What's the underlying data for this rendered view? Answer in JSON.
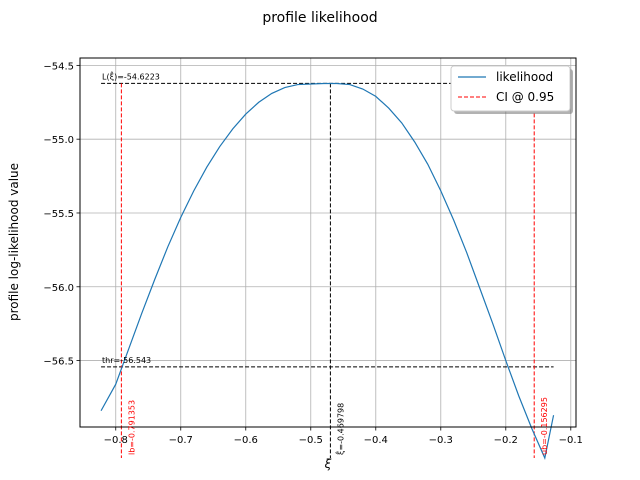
{
  "chart_data": {
    "type": "line",
    "title": "profile likelihood",
    "xlabel": "ξ",
    "ylabel": "profile log-likelihood value",
    "xlim": [
      -0.855,
      -0.092
    ],
    "ylim": [
      -56.95,
      -54.45
    ],
    "grid": true,
    "legend_position": "top-right",
    "x_ticks": [
      -0.8,
      -0.7,
      -0.6,
      -0.5,
      -0.4,
      -0.3,
      -0.2,
      -0.1
    ],
    "x_tick_labels": [
      "−0.8",
      "−0.7",
      "−0.6",
      "−0.5",
      "−0.4",
      "−0.3",
      "−0.2",
      "−0.1"
    ],
    "y_ticks": [
      -54.5,
      -55.0,
      -55.5,
      -56.0,
      -56.5
    ],
    "y_tick_labels": [
      "−54.5",
      "−55.0",
      "−55.5",
      "−56.0",
      "−56.5"
    ],
    "series": [
      {
        "name": "likelihood",
        "color": "#1f77b4",
        "x": [
          -0.8226,
          -0.8,
          -0.78,
          -0.76,
          -0.74,
          -0.72,
          -0.7,
          -0.68,
          -0.66,
          -0.64,
          -0.62,
          -0.6,
          -0.58,
          -0.56,
          -0.54,
          -0.52,
          -0.5,
          -0.48,
          -0.469798,
          -0.46,
          -0.44,
          -0.42,
          -0.4,
          -0.38,
          -0.36,
          -0.34,
          -0.32,
          -0.3,
          -0.28,
          -0.26,
          -0.24,
          -0.22,
          -0.2,
          -0.18,
          -0.16,
          -0.14,
          -0.1265
        ],
        "y": [
          -56.84,
          -56.66,
          -56.42,
          -56.18,
          -55.95,
          -55.73,
          -55.53,
          -55.35,
          -55.19,
          -55.05,
          -54.93,
          -54.83,
          -54.75,
          -54.69,
          -54.65,
          -54.63,
          -54.626,
          -54.623,
          -54.6223,
          -54.623,
          -54.63,
          -54.66,
          -54.71,
          -54.79,
          -54.89,
          -55.02,
          -55.17,
          -55.35,
          -55.55,
          -55.77,
          -56.01,
          -56.25,
          -56.5,
          -56.74,
          -56.96,
          -57.16,
          -56.87
        ]
      }
    ],
    "ci": {
      "name": "CI @ 0.95",
      "color": "#ff0000",
      "lb": -0.791353,
      "ub": -0.156295,
      "lb_label": "lb=-0.791353",
      "ub_label": "ub=-0.156295"
    },
    "optimum": {
      "xi": -0.469798,
      "value": -54.6223,
      "xi_label": "ξ̂=-0.469798",
      "value_label": "L(ξ̂)=-54.6223"
    },
    "threshold": {
      "value": -56.543,
      "label": "thr=-56.543"
    }
  }
}
